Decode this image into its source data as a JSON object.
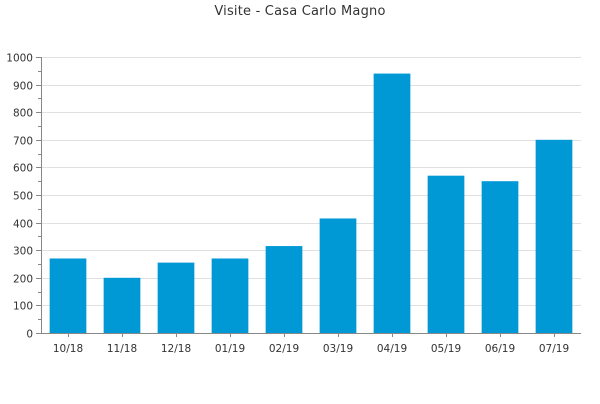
{
  "chart_data": {
    "type": "bar",
    "title": "Visite - Casa Carlo Magno",
    "xlabel": "",
    "ylabel": "",
    "categories": [
      "10/18",
      "11/18",
      "12/18",
      "01/19",
      "02/19",
      "03/19",
      "04/19",
      "05/19",
      "06/19",
      "07/19"
    ],
    "values": [
      270,
      200,
      255,
      270,
      315,
      415,
      940,
      570,
      550,
      700
    ],
    "ylim": [
      0,
      1000
    ],
    "yticks": [
      0,
      100,
      200,
      300,
      400,
      500,
      600,
      700,
      800,
      900,
      1000
    ],
    "grid": true,
    "legend": "none",
    "bar_color": "#0099d5",
    "grid_color": "#e0e0e0",
    "axis_color": "#888888"
  }
}
